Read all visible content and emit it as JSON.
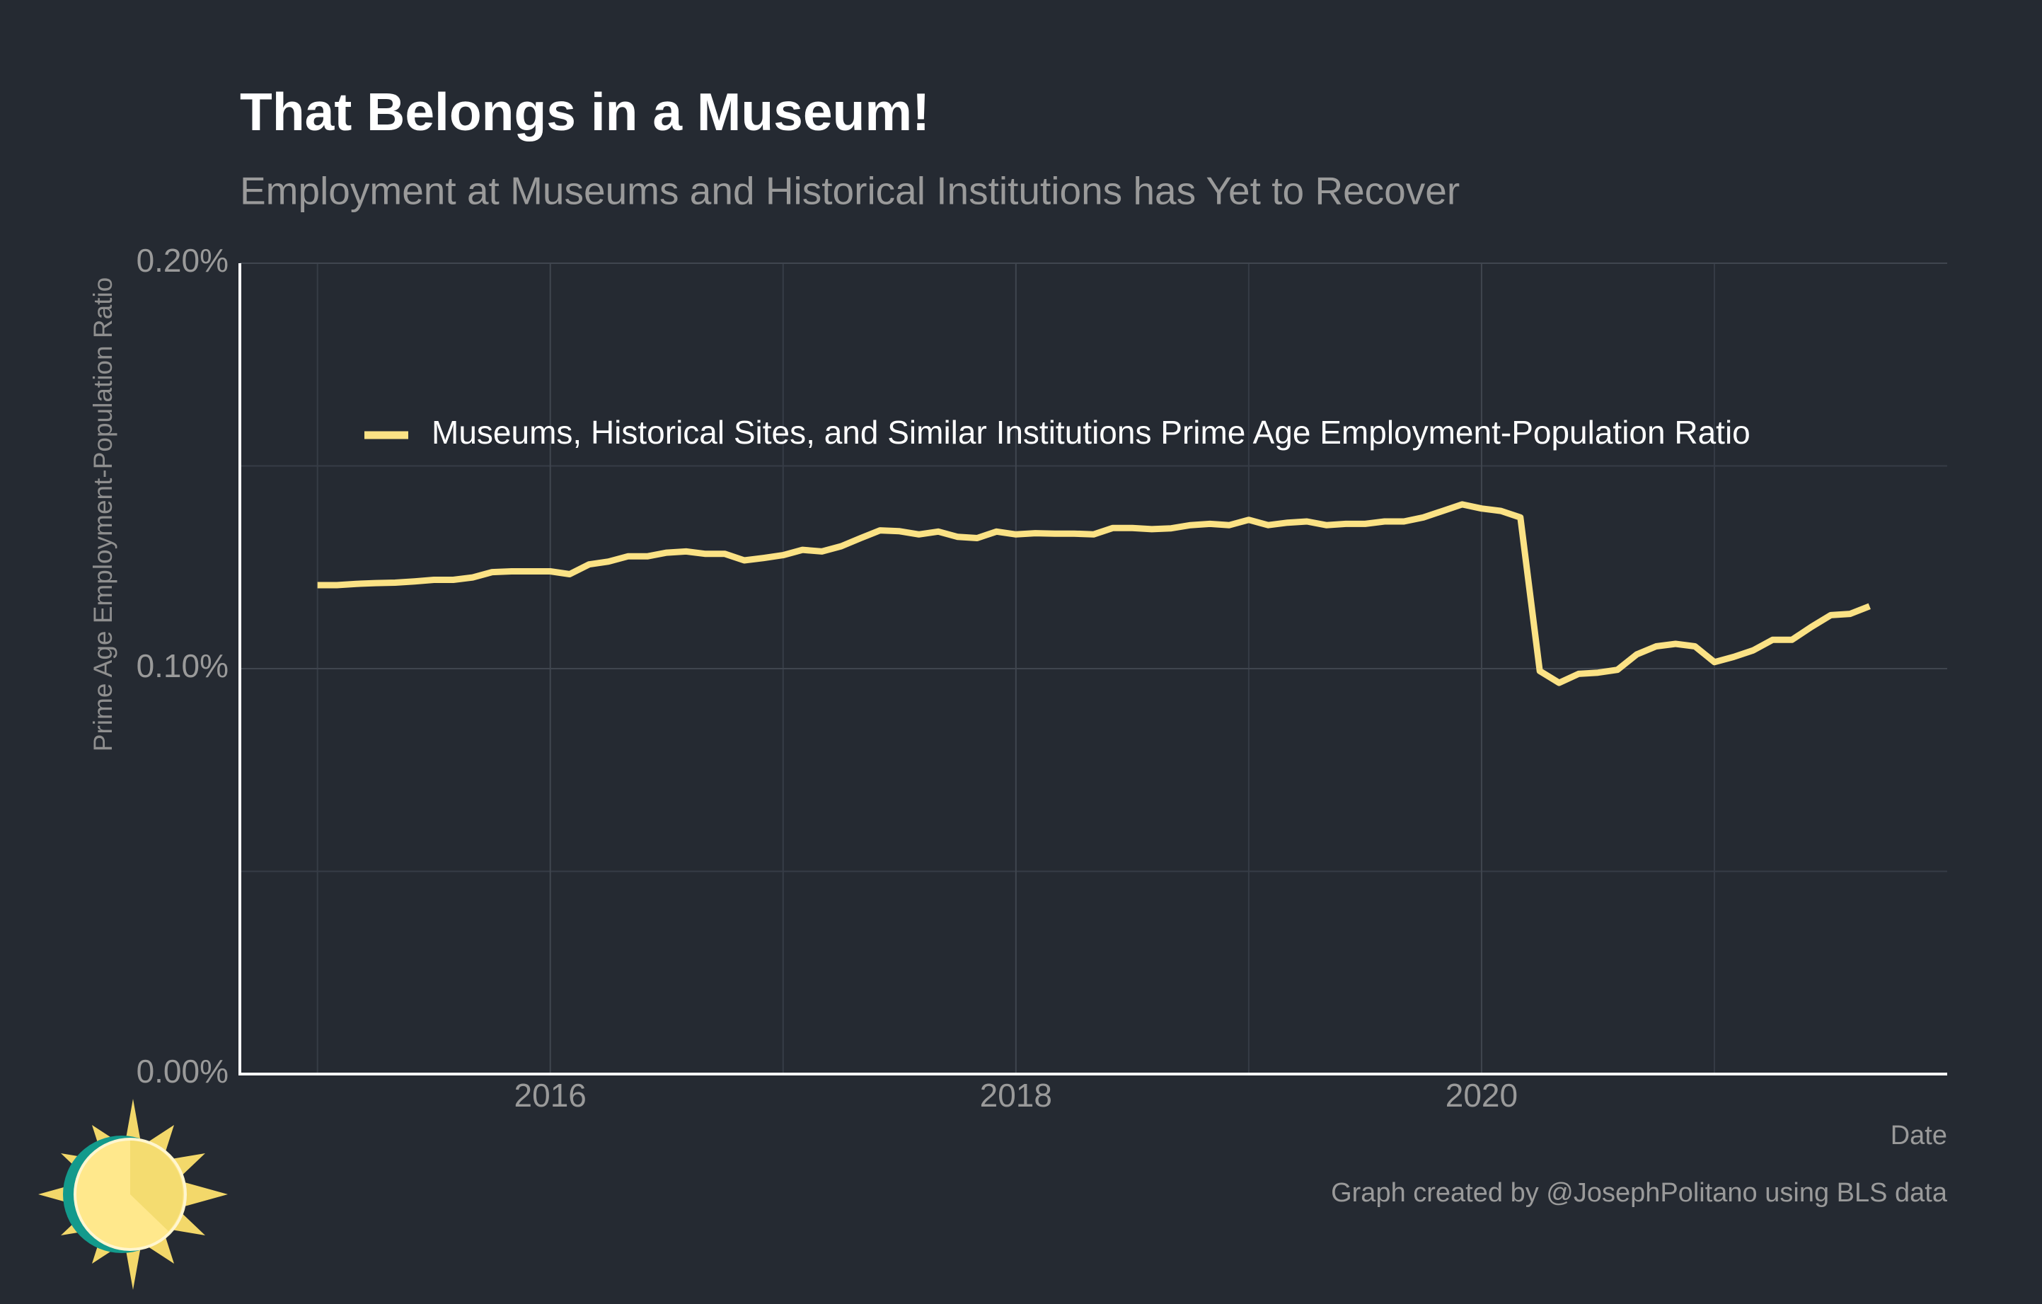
{
  "chart_data": {
    "type": "line",
    "title": "That Belongs in a Museum!",
    "subtitle": "Employment at Museums and Historical Institutions has Yet to Recover",
    "xlabel": "Date",
    "ylabel": "Prime Age Employment-Population Ratio",
    "caption": "Graph created by @JosephPolitano using BLS data",
    "x": [
      "2015-01",
      "2015-02",
      "2015-03",
      "2015-04",
      "2015-05",
      "2015-06",
      "2015-07",
      "2015-08",
      "2015-09",
      "2015-10",
      "2015-11",
      "2015-12",
      "2016-01",
      "2016-02",
      "2016-03",
      "2016-04",
      "2016-05",
      "2016-06",
      "2016-07",
      "2016-08",
      "2016-09",
      "2016-10",
      "2016-11",
      "2016-12",
      "2017-01",
      "2017-02",
      "2017-03",
      "2017-04",
      "2017-05",
      "2017-06",
      "2017-07",
      "2017-08",
      "2017-09",
      "2017-10",
      "2017-11",
      "2017-12",
      "2018-01",
      "2018-02",
      "2018-03",
      "2018-04",
      "2018-05",
      "2018-06",
      "2018-07",
      "2018-08",
      "2018-09",
      "2018-10",
      "2018-11",
      "2018-12",
      "2019-01",
      "2019-02",
      "2019-03",
      "2019-04",
      "2019-05",
      "2019-06",
      "2019-07",
      "2019-08",
      "2019-09",
      "2019-10",
      "2019-11",
      "2019-12",
      "2020-01",
      "2020-02",
      "2020-03",
      "2020-04",
      "2020-05",
      "2020-06",
      "2020-07",
      "2020-08",
      "2020-09",
      "2020-10",
      "2020-11",
      "2020-12",
      "2021-01",
      "2021-02",
      "2021-03",
      "2021-04",
      "2021-05",
      "2021-06",
      "2021-07",
      "2021-08",
      "2021-09"
    ],
    "series": [
      {
        "name": "Museums, Historical Sites, and Similar Institutions Prime Age Employment-Population Ratio",
        "color": "#fbe285",
        "values": [
          0.1206,
          0.1206,
          0.1209,
          0.1211,
          0.1212,
          0.1215,
          0.1219,
          0.1219,
          0.1225,
          0.1238,
          0.124,
          0.124,
          0.124,
          0.1233,
          0.1257,
          0.1264,
          0.1277,
          0.1277,
          0.1286,
          0.1289,
          0.1283,
          0.1283,
          0.1267,
          0.1273,
          0.128,
          0.1293,
          0.1289,
          0.1302,
          0.1322,
          0.1341,
          0.1339,
          0.1331,
          0.1338,
          0.1325,
          0.1322,
          0.1338,
          0.1331,
          0.1334,
          0.1333,
          0.1333,
          0.1331,
          0.1347,
          0.1347,
          0.1344,
          0.1346,
          0.1354,
          0.1357,
          0.1354,
          0.1367,
          0.1354,
          0.136,
          0.1363,
          0.1354,
          0.1357,
          0.1357,
          0.1363,
          0.1363,
          0.1373,
          0.1389,
          0.1405,
          0.1395,
          0.1389,
          0.1373,
          0.0994,
          0.0965,
          0.0987,
          0.099,
          0.0997,
          0.1035,
          0.1055,
          0.1061,
          0.1055,
          0.1016,
          0.1029,
          0.1045,
          0.1071,
          0.1071,
          0.1103,
          0.1132,
          0.1135,
          0.1154
        ]
      }
    ],
    "xlim": [
      "2014-09",
      "2022-01"
    ],
    "xticks": [
      "2016",
      "2018",
      "2020"
    ],
    "ylim": [
      0,
      0.2
    ],
    "yticks": [
      {
        "value": 0,
        "label": "0.00%"
      },
      {
        "value": 0.1,
        "label": "0.10%"
      },
      {
        "value": 0.2,
        "label": "0.20%"
      }
    ],
    "grid": true,
    "legend": "top-left"
  }
}
